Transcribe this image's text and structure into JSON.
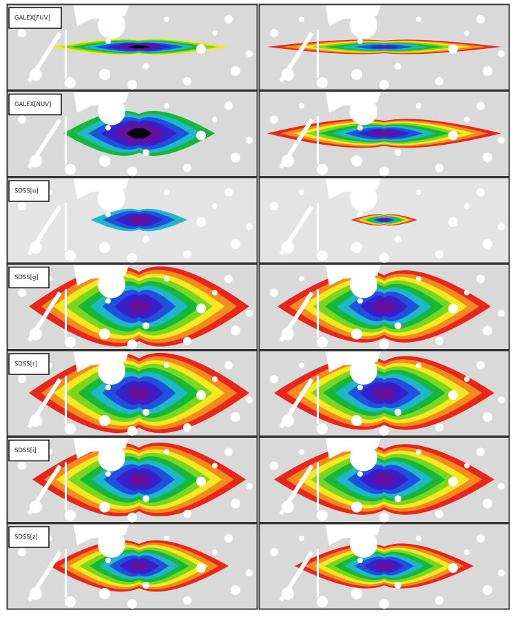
{
  "panels": [
    {
      "label": "GALEX[FUV]"
    },
    {
      "label": "GALEX[NUV]"
    },
    {
      "label": "SDSS[u]"
    },
    {
      "label": "SDSS[g]"
    },
    {
      "label": "SDSS[r]"
    },
    {
      "label": "SDSS[i]"
    },
    {
      "label": "SDSS[z]"
    }
  ]
}
